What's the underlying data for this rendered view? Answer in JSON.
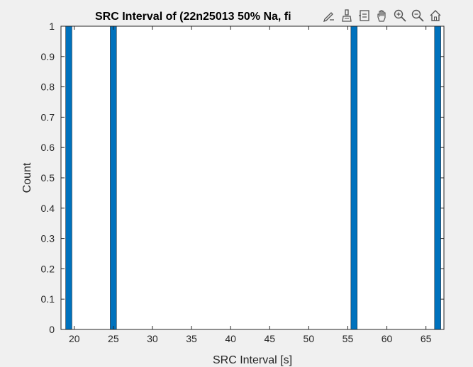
{
  "chart_data": {
    "type": "bar",
    "title": "SRC Interval of (22n25013 50% Na, fi",
    "xlabel": "SRC Interval [s]",
    "ylabel": "Count",
    "xlim": [
      18.3,
      67.3
    ],
    "ylim": [
      0,
      1
    ],
    "x_ticks": [
      20,
      25,
      30,
      35,
      40,
      45,
      50,
      55,
      60,
      65
    ],
    "y_ticks": [
      0,
      0.1,
      0.2,
      0.3,
      0.4,
      0.5,
      0.6,
      0.7,
      0.8,
      0.9,
      1
    ],
    "bar_width": 0.8,
    "grid": false,
    "bars": [
      {
        "x": 19.3,
        "value": 1
      },
      {
        "x": 25.0,
        "value": 1
      },
      {
        "x": 55.8,
        "value": 1
      },
      {
        "x": 66.5,
        "value": 1
      }
    ],
    "bar_color": "#0072bd"
  },
  "toolbar": {
    "tools": [
      "edit-icon",
      "brush-icon",
      "data-tips-icon",
      "pan-icon",
      "zoom-in-icon",
      "zoom-out-icon",
      "home-icon"
    ]
  }
}
